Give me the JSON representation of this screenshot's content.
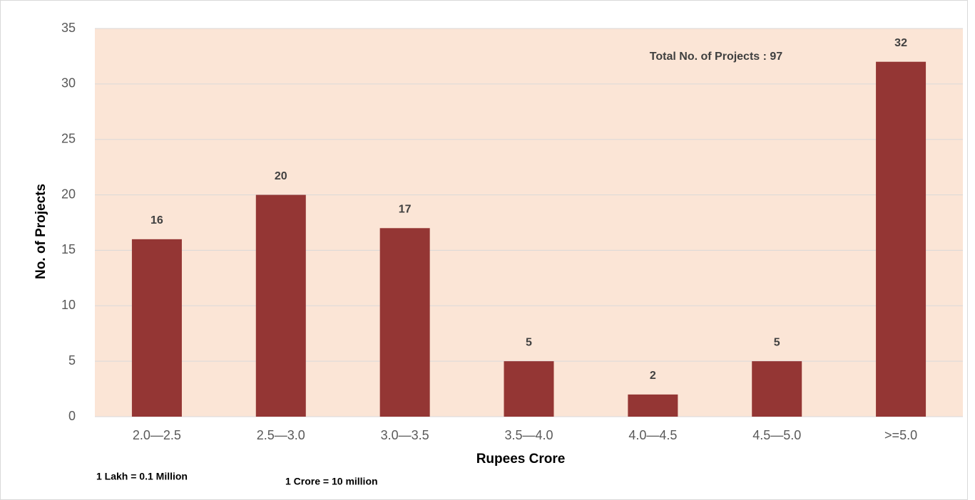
{
  "chart_data": {
    "type": "bar",
    "categories": [
      "2.0—2.5",
      "2.5—3.0",
      "3.0—3.5",
      "3.5—4.0",
      "4.0—4.5",
      "4.5—5.0",
      ">=5.0"
    ],
    "values": [
      16,
      20,
      17,
      5,
      2,
      5,
      32
    ],
    "color": "#943634",
    "ylim": [
      0,
      35
    ],
    "yticks": [
      0,
      5,
      10,
      15,
      20,
      25,
      30,
      35
    ],
    "grid": true,
    "y_label": "No. of Projects",
    "x_label": "Rupees Crore",
    "annotation": "Total No. of Projects : 97",
    "notes": [
      "1 Lakh = 0.1 Million",
      "1 Crore = 10 million"
    ]
  }
}
